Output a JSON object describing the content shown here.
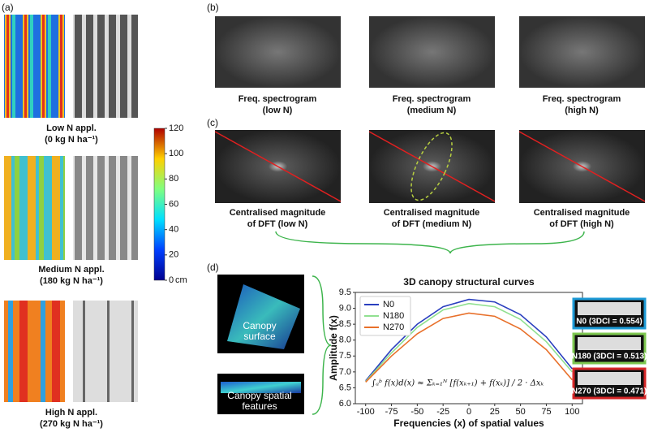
{
  "panel_a": {
    "label": "(a)",
    "groups": [
      {
        "name": "Low N appl.",
        "rate": "(0 kg N ha⁻¹)"
      },
      {
        "name": "Medium N appl.",
        "rate": "(180 kg N ha⁻¹)"
      },
      {
        "name": "High N appl.",
        "rate": "(270 kg N ha⁻¹)"
      }
    ],
    "colorbar": {
      "lim": [
        0,
        120
      ],
      "ticks": [
        0,
        20,
        40,
        60,
        80,
        100,
        120
      ],
      "unit": "cm"
    }
  },
  "panel_b": {
    "label": "(b)",
    "captions": [
      [
        "Freq. spectrogram",
        "(low N)"
      ],
      [
        "Freq. spectrogram",
        "(medium N)"
      ],
      [
        "Freq. spectrogram",
        "(high N)"
      ]
    ]
  },
  "panel_c": {
    "label": "(c)",
    "captions": [
      [
        "Centralised magnitude",
        "of DFT (low N)"
      ],
      [
        "Centralised magnitude",
        "of DFT (medium N)"
      ],
      [
        "Centralised magnitude",
        "of DFT (high N)"
      ]
    ]
  },
  "panel_d": {
    "label": "(d)",
    "image_labels": [
      [
        "Canopy",
        "surface"
      ],
      [
        "Canopy spatial",
        "features"
      ]
    ],
    "insets": [
      {
        "label": "N0 (3DCI = 0.554)",
        "color": "#1e9bd7"
      },
      {
        "label": "N180 (3DCI = 0.513)",
        "color": "#7ec850"
      },
      {
        "label": "N270 (3DCI = 0.471)",
        "color": "#d62728"
      }
    ]
  },
  "chart_data": {
    "type": "line",
    "title": "3D canopy structural curves",
    "x_label": "Frequencies (x) of spatial values",
    "y_label": "Amplitude f(x)",
    "annotation": "∫ₐᵇ f(x)d(x) ≈ Σₖ₌₁ᴺ [f(xₖ₊₁) + f(xₖ)] / 2 · Δxₖ",
    "x": [
      -100,
      -75,
      -50,
      -25,
      0,
      25,
      50,
      75,
      100
    ],
    "series": [
      {
        "name": "N0",
        "color": "#2a3fbf",
        "values": [
          6.72,
          7.7,
          8.5,
          9.05,
          9.28,
          9.2,
          8.8,
          8.1,
          7.1
        ]
      },
      {
        "name": "N180",
        "color": "#90e090",
        "values": [
          6.7,
          7.6,
          8.4,
          8.95,
          9.15,
          9.05,
          8.65,
          7.95,
          7.0
        ]
      },
      {
        "name": "N270",
        "color": "#e8702a",
        "values": [
          6.68,
          7.5,
          8.2,
          8.68,
          8.85,
          8.75,
          8.35,
          7.7,
          6.75
        ]
      }
    ],
    "xlim": [
      -110,
      110
    ],
    "xticks": [
      -100,
      -75,
      -50,
      -25,
      0,
      25,
      50,
      75,
      100
    ],
    "ylim": [
      6.0,
      9.5
    ],
    "yticks": [
      {
        "value": 6,
        "label": "6.0"
      },
      {
        "value": 6.5,
        "label": "6.5"
      },
      {
        "value": 7,
        "label": "7.0"
      },
      {
        "value": 7.5,
        "label": "7.5"
      },
      {
        "value": 8,
        "label": "8.0"
      },
      {
        "value": 8.5,
        "label": "8.5"
      },
      {
        "value": 9,
        "label": "9.0"
      },
      {
        "value": 9.5,
        "label": "9.5"
      }
    ],
    "legend": "upper left"
  }
}
